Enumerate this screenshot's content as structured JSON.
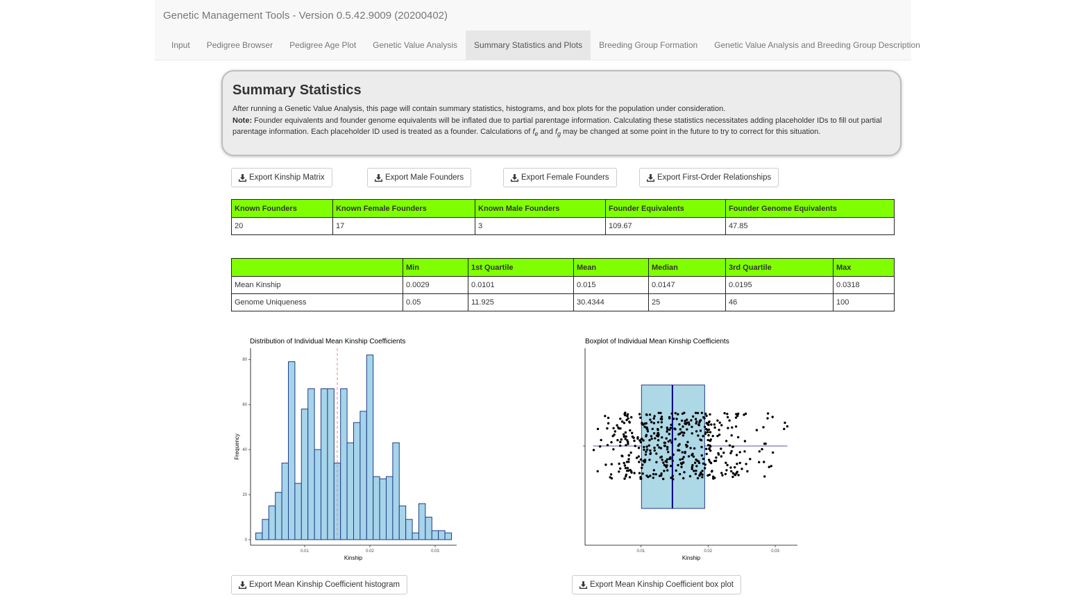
{
  "app": {
    "title": "Genetic Management Tools - Version 0.5.42.9009 (20200402)"
  },
  "tabs": [
    {
      "label": "Input"
    },
    {
      "label": "Pedigree Browser"
    },
    {
      "label": "Pedigree Age Plot"
    },
    {
      "label": "Genetic Value Analysis"
    },
    {
      "label": "Summary Statistics and Plots",
      "active": true
    },
    {
      "label": "Breeding Group Formation"
    },
    {
      "label": "Genetic Value Analysis and Breeding Group Description"
    }
  ],
  "summary": {
    "title": "Summary Statistics",
    "intro": "After running a Genetic Value Analysis, this page will contain summary statistics, histograms, and box plots for the population under consideration.",
    "note_label": "Note:",
    "note_text_1": " Founder equivalents and founder genome equivalents will be inflated due to partial parentage information. Calculating these statistics necessitates adding placeholder IDs to fill out partial parentage information. Each placeholder ID used is treated as a founder. Calculations of ",
    "fe_base": "f",
    "fe_sub": "e",
    "and": " and ",
    "fg_base": "f",
    "fg_sub": "g",
    "note_text_2": " may be changed at some point in the future to try to correct for this situation."
  },
  "exports": {
    "kinship_matrix": "Export Kinship Matrix",
    "male_founders": "Export Male Founders",
    "female_founders": "Export Female Founders",
    "first_order": "Export First-Order Relationships",
    "histogram": "Export Mean Kinship Coefficient histogram",
    "boxplot": "Export Mean Kinship Coefficient box plot"
  },
  "icons": {
    "download": "download-icon"
  },
  "colors": {
    "header_green": "#7fff00",
    "bar_fill": "#a6d4ea",
    "bar_stroke": "#1f3c88",
    "mean_line": "#f08080"
  },
  "founders_table": {
    "headers": [
      "Known Founders",
      "Known Female Founders",
      "Known Male Founders",
      "Founder Equivalents",
      "Founder Genome Equivalents"
    ],
    "row": [
      "20",
      "17",
      "3",
      "109.67",
      "47.85"
    ]
  },
  "stats_table": {
    "headers": [
      "",
      "Min",
      "1st Quartile",
      "Mean",
      "Median",
      "3rd Quartile",
      "Max"
    ],
    "rows": [
      [
        "Mean Kinship",
        "0.0029",
        "0.0101",
        "0.015",
        "0.0147",
        "0.0195",
        "0.0318"
      ],
      [
        "Genome Uniqueness",
        "0.05",
        "11.925",
        "30.4344",
        "25",
        "46",
        "100"
      ]
    ]
  },
  "chart_data": [
    {
      "type": "bar",
      "title": "Distribution of Individual Mean Kinship Coefficients",
      "xlabel": "Kinship",
      "ylabel": "Frequency",
      "x_ticks": [
        "0.01",
        "0.02",
        "0.03"
      ],
      "x_tick_values": [
        0.01,
        0.02,
        0.03
      ],
      "y_ticks": [
        "0",
        "20",
        "40",
        "60",
        "80"
      ],
      "y_tick_values": [
        0,
        20,
        40,
        60,
        80
      ],
      "xlim": [
        0.0017,
        0.0333
      ],
      "ylim": [
        0,
        85
      ],
      "bin_width": 0.001,
      "bin_start": 0.0025,
      "values": [
        3,
        9,
        15,
        21,
        34,
        79,
        25,
        58,
        67,
        40,
        67,
        67,
        34,
        67,
        43,
        52,
        57,
        82,
        28,
        27,
        28,
        43,
        15,
        9,
        3,
        16,
        10,
        4,
        4,
        3
      ],
      "mean_line": 0.015
    },
    {
      "type": "box",
      "title": "Boxplot of Individual Mean Kinship Coefficients",
      "xlabel": "Kinship",
      "x_ticks": [
        "0.01",
        "0.02",
        "0.03"
      ],
      "x_tick_values": [
        0.01,
        0.02,
        0.03
      ],
      "xlim": [
        0.0017,
        0.0333
      ],
      "whisker_low": 0.0029,
      "q1": 0.0101,
      "median": 0.0147,
      "q3": 0.0195,
      "whisker_high": 0.0318
    }
  ]
}
